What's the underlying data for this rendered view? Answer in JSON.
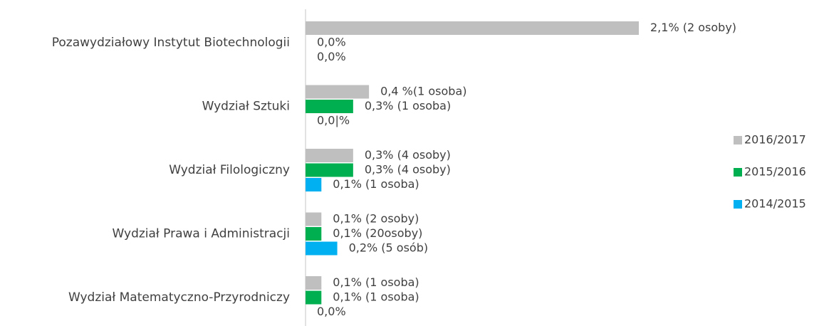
{
  "chart_data": {
    "type": "barh",
    "categories": [
      "Pozawydziałowy Instytut Biotechnologii",
      "Wydział Sztuki",
      "Wydział Filologiczny",
      "Wydział Prawa i Administracji",
      "Wydział Matematyczno-Przyrodniczy"
    ],
    "series": [
      {
        "name": "2016/2017",
        "color": "#bfbfbf",
        "values": [
          2.1,
          0.4,
          0.3,
          0.1,
          0.1
        ],
        "value_labels": [
          "2,1% (2 osoby)",
          "0,4 %(1 osoba)",
          "0,3% (4 osoby)",
          "0,1% (2 osoby)",
          "0,1% (1 osoba)"
        ]
      },
      {
        "name": "2015/2016",
        "color": "#00b050",
        "values": [
          0.0,
          0.3,
          0.3,
          0.1,
          0.1
        ],
        "value_labels": [
          "0,0%",
          "0,3% (1 osoba)",
          "0,3% (4 osoby)",
          "0,1% (20osoby)",
          "0,1% (1 osoba)"
        ]
      },
      {
        "name": "2014/2015",
        "color": "#00b0f0",
        "values": [
          0.0,
          0.0,
          0.1,
          0.2,
          0.0
        ],
        "value_labels": [
          "0,0%",
          "0,0|%",
          "0,1% (1 osoba)",
          "0,2% (5 osób)",
          "0,0%"
        ]
      }
    ],
    "legend": "right"
  }
}
